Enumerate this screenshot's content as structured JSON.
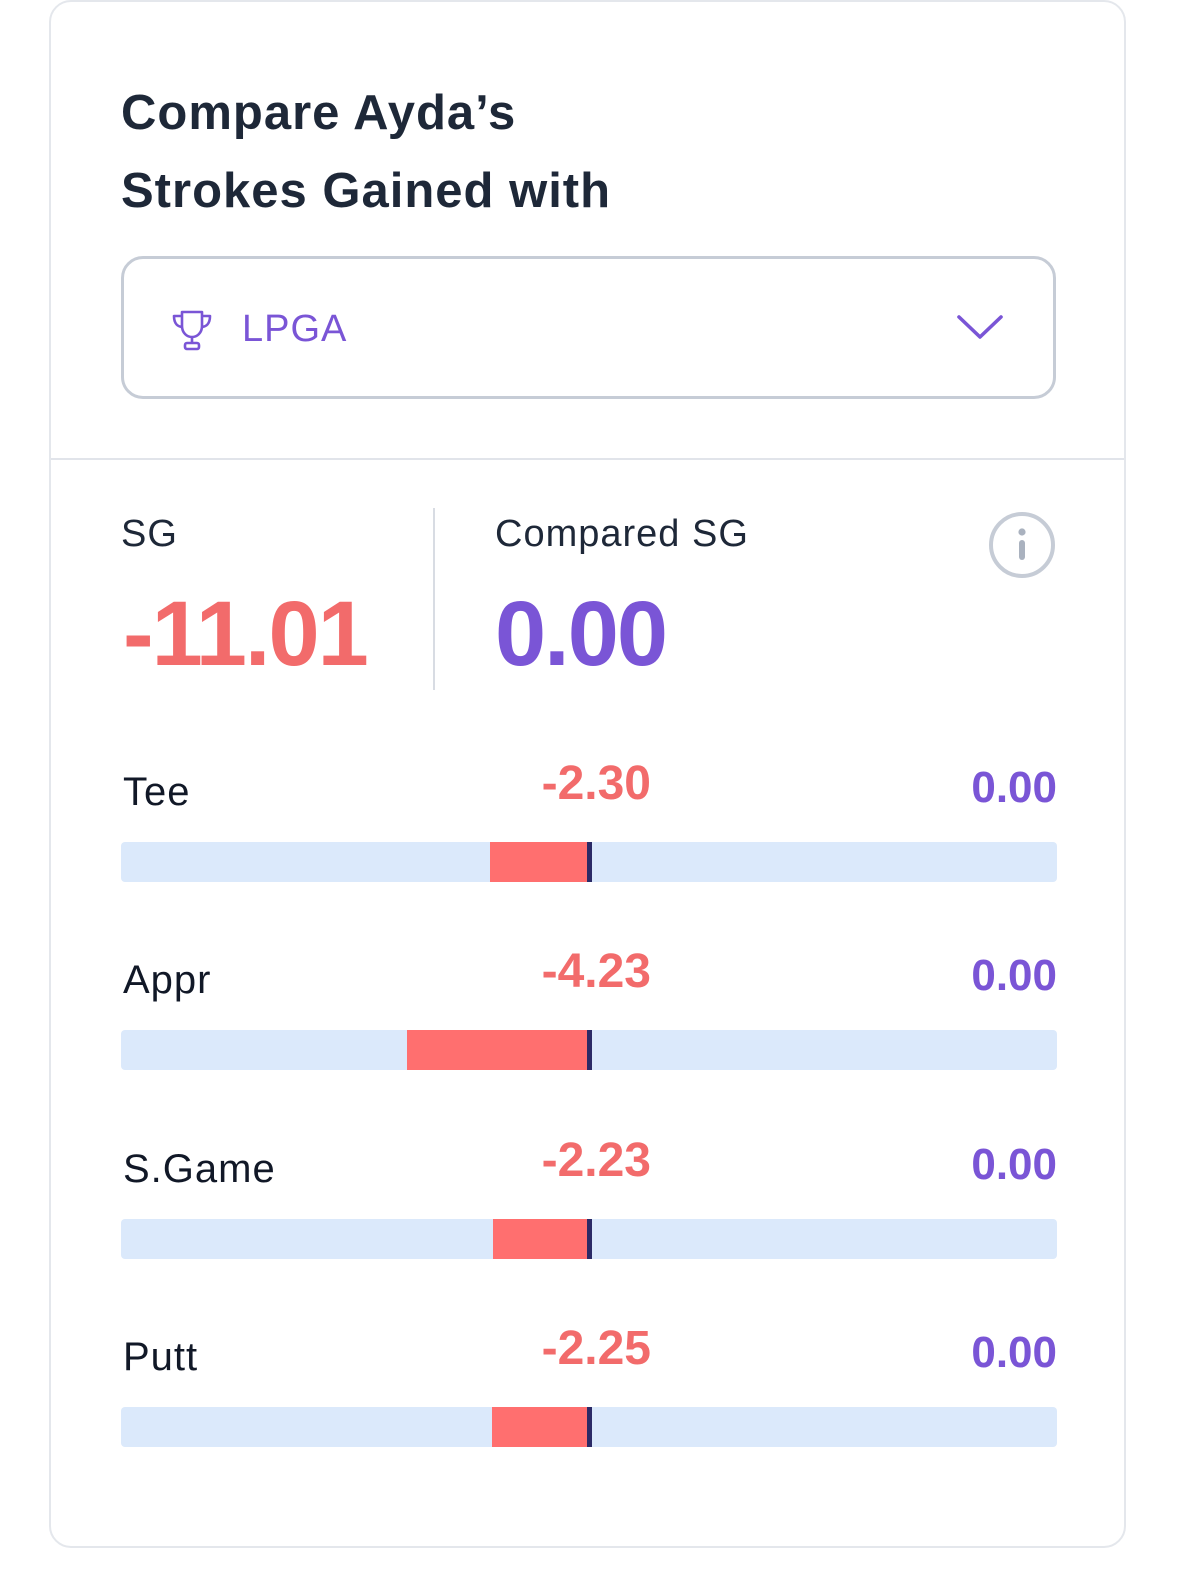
{
  "header": {
    "title_line1": "Compare Ayda’s",
    "title_line2": "Strokes Gained with"
  },
  "compare_select": {
    "icon": "trophy-icon",
    "value": "LPGA",
    "chevron": "chevron-down-icon"
  },
  "summary": {
    "sg_label": "SG",
    "sg_value": "-11.01",
    "compared_label": "Compared SG",
    "compared_value": "0.00",
    "info_icon": "info-icon"
  },
  "categories": [
    {
      "label": "Tee",
      "sg": "-2.30",
      "compared": "0.00",
      "sg_num": -2.3
    },
    {
      "label": "Appr",
      "sg": "-4.23",
      "compared": "0.00",
      "sg_num": -4.23
    },
    {
      "label": "S.Game",
      "sg": "-2.23",
      "compared": "0.00",
      "sg_num": -2.23
    },
    {
      "label": "Putt",
      "sg": "-2.25",
      "compared": "0.00",
      "sg_num": -2.25
    }
  ],
  "colors": {
    "negative": "#f26b6b",
    "bar_negative": "#ff6f6f",
    "compared": "#7a55d6",
    "track": "#dbe9fb",
    "center_line": "#2b2a66",
    "title": "#1e2838"
  }
}
